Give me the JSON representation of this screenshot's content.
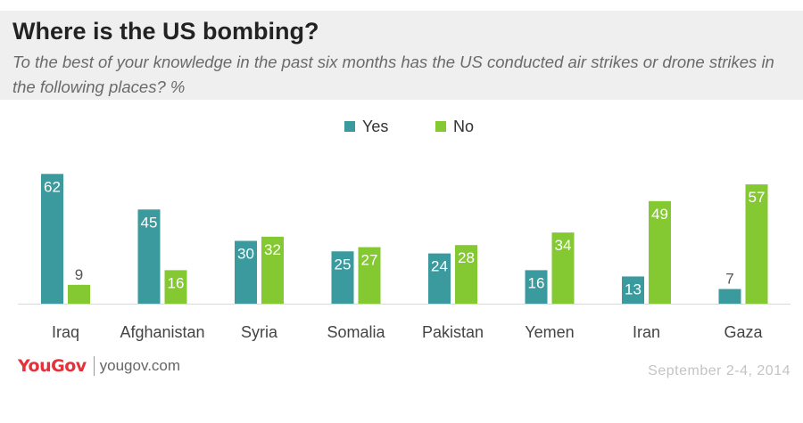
{
  "header": {
    "title": "Where is the US bombing?",
    "subtitle": "To the best of your knowledge in the past six months has the US conducted air strikes or drone strikes in the following places? %"
  },
  "colors": {
    "yes": "#3b9a9e",
    "no": "#84c932",
    "label_dark": "#555555",
    "label_light": "#ffffff"
  },
  "legend": {
    "yes_label": "Yes",
    "no_label": "No"
  },
  "chart_data": {
    "type": "bar",
    "title": "Where is the US bombing?",
    "categories": [
      "Iraq",
      "Afghanistan",
      "Syria",
      "Somalia",
      "Pakistan",
      "Yemen",
      "Iran",
      "Gaza"
    ],
    "series": [
      {
        "name": "Yes",
        "values": [
          62,
          45,
          30,
          25,
          24,
          16,
          13,
          7
        ]
      },
      {
        "name": "No",
        "values": [
          9,
          16,
          32,
          27,
          28,
          34,
          49,
          57
        ]
      }
    ],
    "ylim": [
      0,
      65
    ],
    "grid": false,
    "legend_position": "top-center",
    "xlabel": "",
    "ylabel": ""
  },
  "footer": {
    "logo": "YouGov",
    "site": "yougov.com",
    "date": "September 2-4, 2014"
  }
}
